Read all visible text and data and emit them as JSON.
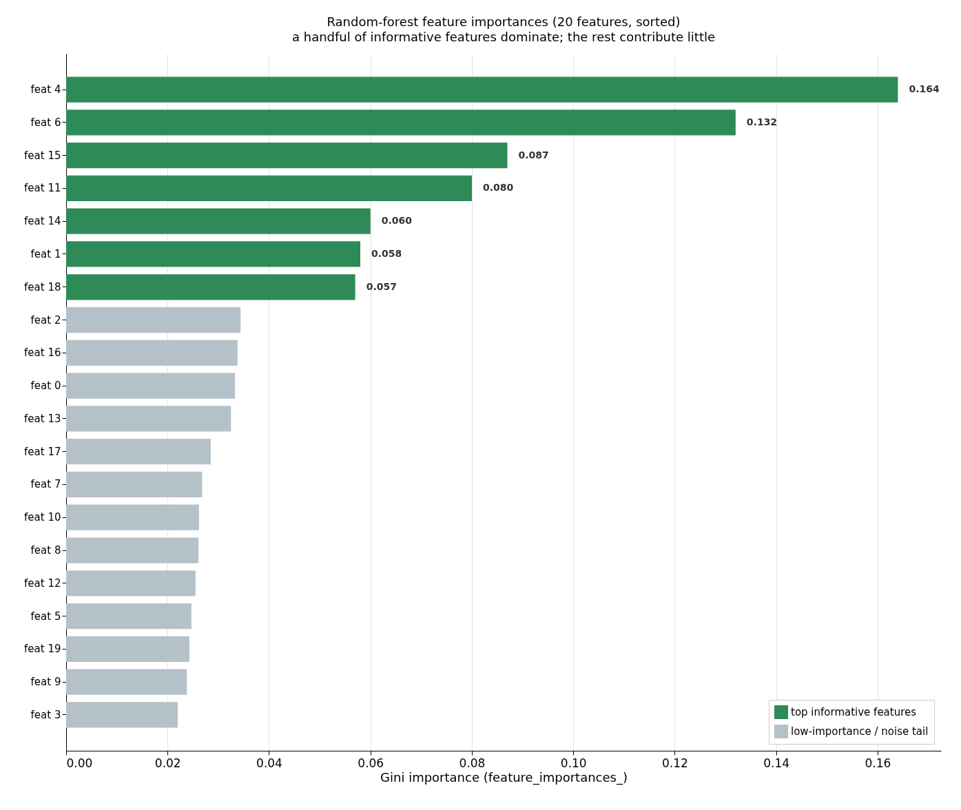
{
  "chart_data": {
    "type": "bar",
    "orientation": "horizontal",
    "title": "Random-forest feature importances (20 features, sorted)",
    "subtitle": "a handful of informative features dominate; the rest contribute little",
    "xlabel": "Gini importance  (feature_importances_)",
    "categories": [
      "feat 4",
      "feat 6",
      "feat 15",
      "feat 11",
      "feat 14",
      "feat 1",
      "feat 18",
      "feat 2",
      "feat 16",
      "feat 0",
      "feat 13",
      "feat 17",
      "feat 7",
      "feat 10",
      "feat 8",
      "feat 12",
      "feat 5",
      "feat 19",
      "feat 9",
      "feat 3"
    ],
    "series": [
      {
        "name": "top informative features",
        "color": "#2e8b57",
        "values": [
          0.164,
          0.132,
          0.087,
          0.08,
          0.06,
          0.058,
          0.057,
          null,
          null,
          null,
          null,
          null,
          null,
          null,
          null,
          null,
          null,
          null,
          null,
          null
        ],
        "value_labels": [
          "0.164",
          "0.132",
          "0.087",
          "0.080",
          "0.060",
          "0.058",
          "0.057",
          null,
          null,
          null,
          null,
          null,
          null,
          null,
          null,
          null,
          null,
          null,
          null,
          null
        ]
      },
      {
        "name": "low-importance / noise tail",
        "color": "#b5c1c9",
        "values": [
          null,
          null,
          null,
          null,
          null,
          null,
          null,
          0.0344,
          0.0338,
          0.0333,
          0.0325,
          0.0285,
          0.0268,
          0.0262,
          0.0261,
          0.0255,
          0.0247,
          0.0243,
          0.0238,
          0.022
        ]
      }
    ],
    "xlim": [
      0,
      0.1725
    ],
    "xticks": [
      {
        "value": 0,
        "label": "0.00"
      },
      {
        "value": 0.02,
        "label": "0.02"
      },
      {
        "value": 0.04,
        "label": "0.04"
      },
      {
        "value": 0.06,
        "label": "0.06"
      },
      {
        "value": 0.08,
        "label": "0.08"
      },
      {
        "value": 0.1,
        "label": "0.10"
      },
      {
        "value": 0.12,
        "label": "0.12"
      },
      {
        "value": 0.14,
        "label": "0.14"
      },
      {
        "value": 0.16,
        "label": "0.16"
      }
    ],
    "grid": "x",
    "legend": "bottom right"
  }
}
